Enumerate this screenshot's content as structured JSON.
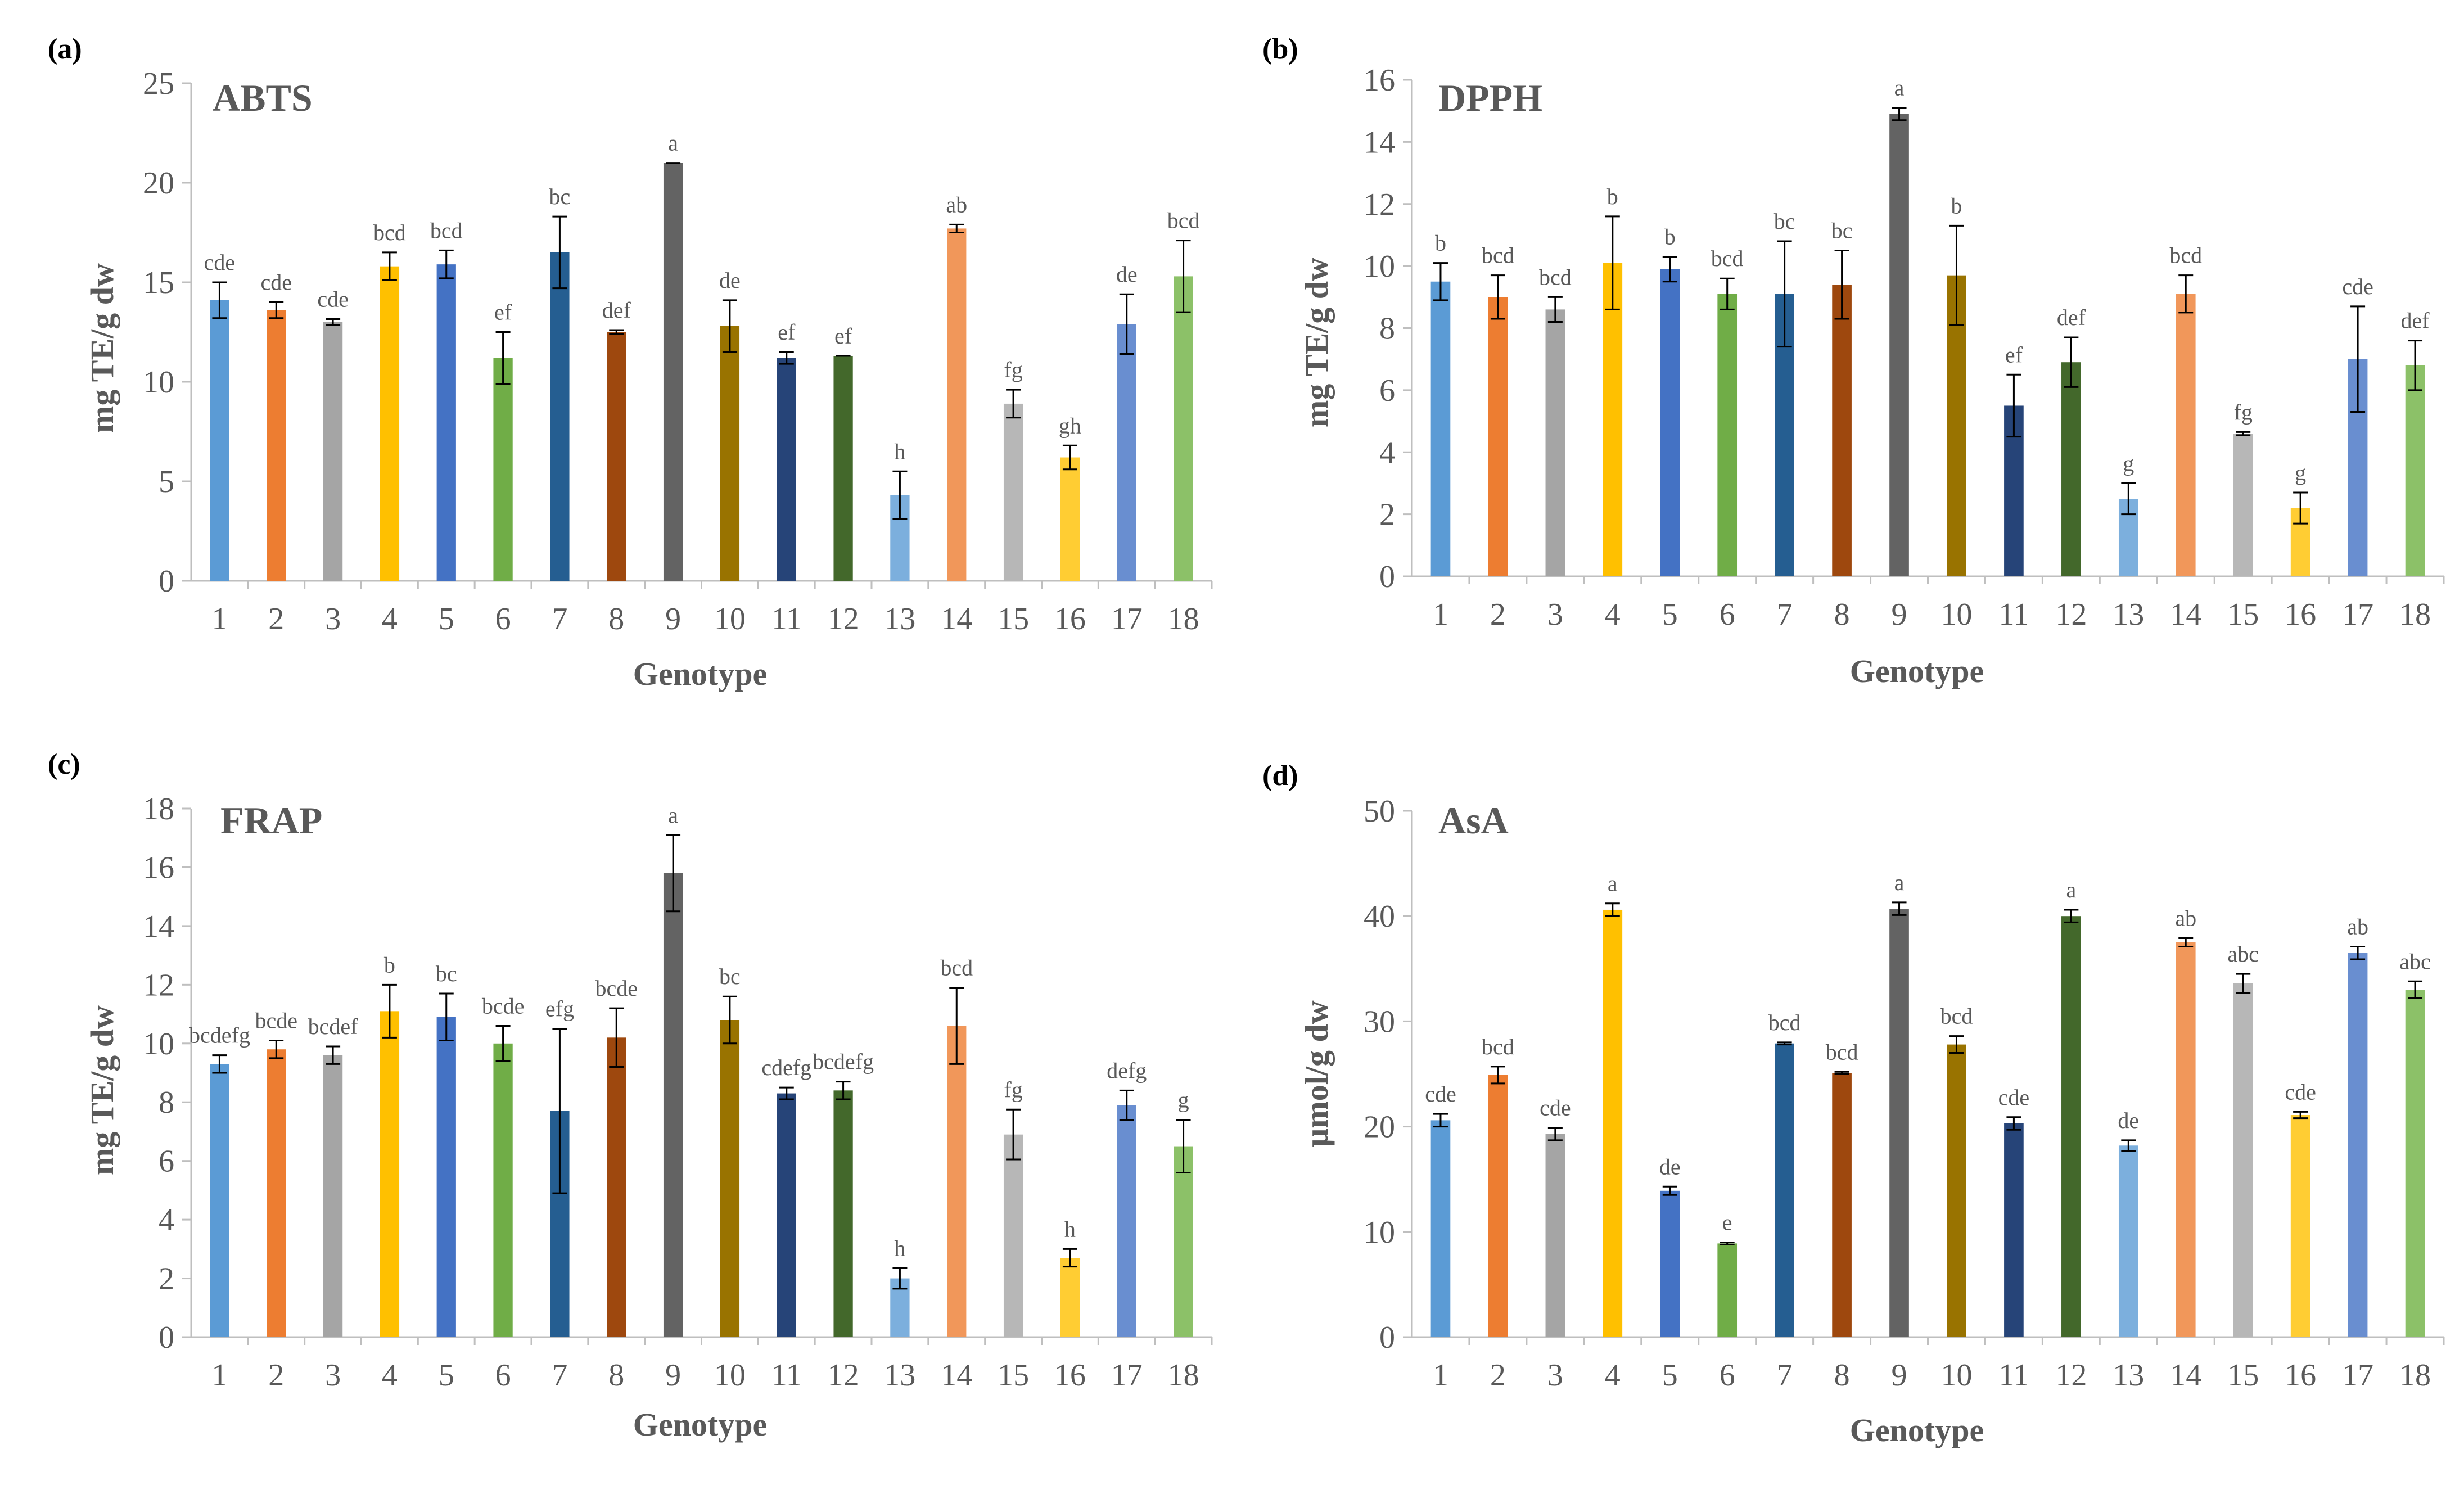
{
  "figure": {
    "panel_labels": [
      "(a)",
      "(b)",
      "(c)",
      "(d)"
    ]
  },
  "colors": {
    "axis": "#bfbfbf",
    "tick_text": "#595959",
    "error_bar": "#000000",
    "bars": [
      "#5b9bd5",
      "#ed7d31",
      "#a5a5a5",
      "#ffc000",
      "#4472c4",
      "#70ad47",
      "#255e91",
      "#9e480e",
      "#636363",
      "#997300",
      "#264478",
      "#43682b",
      "#7cafdd",
      "#f1975a",
      "#b7b7b7",
      "#ffcd33",
      "#698ed0",
      "#8cc168"
    ]
  },
  "chart_data": [
    {
      "type": "bar",
      "panel": "(a)",
      "title": "ABTS",
      "xlabel": "Genotype",
      "ylabel": "mg TE/g dw",
      "ylim": [
        0,
        25
      ],
      "yticks": [
        0,
        5,
        10,
        15,
        20,
        25
      ],
      "categories": [
        "1",
        "2",
        "3",
        "4",
        "5",
        "6",
        "7",
        "8",
        "9",
        "10",
        "11",
        "12",
        "13",
        "14",
        "15",
        "16",
        "17",
        "18"
      ],
      "values": [
        14.1,
        13.6,
        13.0,
        15.8,
        15.9,
        11.2,
        16.5,
        12.5,
        21.0,
        12.8,
        11.2,
        11.3,
        4.3,
        17.7,
        8.9,
        6.2,
        12.9,
        15.3
      ],
      "errors": [
        0.9,
        0.4,
        0.15,
        0.7,
        0.7,
        1.3,
        1.8,
        0.1,
        0.0,
        1.3,
        0.3,
        0.0,
        1.2,
        0.2,
        0.7,
        0.6,
        1.5,
        1.8
      ],
      "letters": [
        "cde",
        "cde",
        "cde",
        "bcd",
        "bcd",
        "ef",
        "bc",
        "def",
        "a",
        "de",
        "ef",
        "ef",
        "h",
        "ab",
        "fg",
        "gh",
        "de",
        "bcd"
      ]
    },
    {
      "type": "bar",
      "panel": "(b)",
      "title": "DPPH",
      "xlabel": "Genotype",
      "ylabel": "mg TE/g dw",
      "ylim": [
        0,
        16
      ],
      "yticks": [
        0,
        2,
        4,
        6,
        8,
        10,
        12,
        14,
        16
      ],
      "categories": [
        "1",
        "2",
        "3",
        "4",
        "5",
        "6",
        "7",
        "8",
        "9",
        "10",
        "11",
        "12",
        "13",
        "14",
        "15",
        "16",
        "17",
        "18"
      ],
      "values": [
        9.5,
        9.0,
        8.6,
        10.1,
        9.9,
        9.1,
        9.1,
        9.4,
        14.9,
        9.7,
        5.5,
        6.9,
        2.5,
        9.1,
        4.6,
        2.2,
        7.0,
        6.8
      ],
      "errors": [
        0.6,
        0.7,
        0.4,
        1.5,
        0.4,
        0.5,
        1.7,
        1.1,
        0.2,
        1.6,
        1.0,
        0.8,
        0.5,
        0.6,
        0.05,
        0.5,
        1.7,
        0.8
      ],
      "letters": [
        "b",
        "bcd",
        "bcd",
        "b",
        "b",
        "bcd",
        "bc",
        "bc",
        "a",
        "b",
        "ef",
        "def",
        "g",
        "bcd",
        "fg",
        "g",
        "cde",
        "def"
      ]
    },
    {
      "type": "bar",
      "panel": "(c)",
      "title": "FRAP",
      "xlabel": "Genotype",
      "ylabel": "mg TE/g dw",
      "ylim": [
        0,
        18
      ],
      "yticks": [
        0,
        2,
        4,
        6,
        8,
        10,
        12,
        14,
        16,
        18
      ],
      "categories": [
        "1",
        "2",
        "3",
        "4",
        "5",
        "6",
        "7",
        "8",
        "9",
        "10",
        "11",
        "12",
        "13",
        "14",
        "15",
        "16",
        "17",
        "18"
      ],
      "values": [
        9.3,
        9.8,
        9.6,
        11.1,
        10.9,
        10.0,
        7.7,
        10.2,
        15.8,
        10.8,
        8.3,
        8.4,
        2.0,
        10.6,
        6.9,
        2.7,
        7.9,
        6.5
      ],
      "errors": [
        0.3,
        0.3,
        0.3,
        0.9,
        0.8,
        0.6,
        2.8,
        1.0,
        1.3,
        0.8,
        0.2,
        0.3,
        0.35,
        1.3,
        0.85,
        0.3,
        0.5,
        0.9
      ],
      "letters": [
        "bcdefg",
        "bcde",
        "bcdef",
        "b",
        "bc",
        "bcde",
        "efg",
        "bcde",
        "a",
        "bc",
        "cdefg",
        "bcdefg",
        "h",
        "bcd",
        "fg",
        "h",
        "defg",
        "g"
      ]
    },
    {
      "type": "bar",
      "panel": "(d)",
      "title": "AsA",
      "xlabel": "Genotype",
      "ylabel": "µmol/g dw",
      "ylim": [
        0,
        50
      ],
      "yticks": [
        0,
        10,
        20,
        30,
        40,
        50
      ],
      "categories": [
        "1",
        "2",
        "3",
        "4",
        "5",
        "6",
        "7",
        "8",
        "9",
        "10",
        "11",
        "12",
        "13",
        "14",
        "15",
        "16",
        "17",
        "18"
      ],
      "values": [
        20.6,
        24.9,
        19.3,
        40.6,
        13.9,
        8.9,
        27.9,
        25.1,
        40.7,
        27.8,
        20.3,
        40.0,
        18.2,
        37.5,
        33.6,
        21.1,
        36.5,
        33.0
      ],
      "errors": [
        0.6,
        0.8,
        0.6,
        0.6,
        0.4,
        0.1,
        0.1,
        0.1,
        0.6,
        0.8,
        0.6,
        0.6,
        0.5,
        0.4,
        0.9,
        0.3,
        0.6,
        0.8
      ],
      "letters": [
        "cde",
        "bcd",
        "cde",
        "a",
        "de",
        "e",
        "bcd",
        "bcd",
        "a",
        "bcd",
        "cde",
        "a",
        "de",
        "ab",
        "abc",
        "cde",
        "ab",
        "abc"
      ]
    }
  ]
}
